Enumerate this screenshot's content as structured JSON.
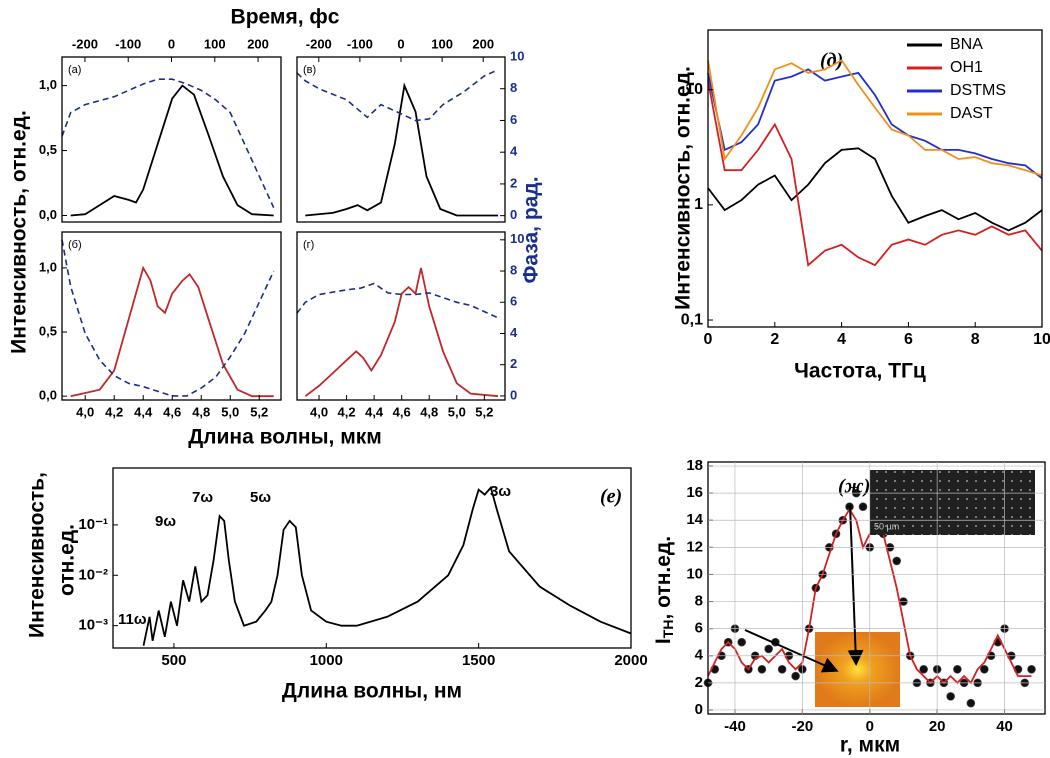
{
  "chart_data": [
    {
      "type": "line",
      "panel_label": "(а)",
      "x2label": "Время, фс",
      "ylabel": "Интенсивность, отн.ед.",
      "xlim": [
        3.84,
        5.35
      ],
      "x2lim": [
        -253,
        253
      ],
      "ylim": [
        -0.05,
        1.22
      ],
      "y2lim": [
        -0.4,
        10
      ],
      "x2ticks": [
        -200,
        -100,
        0,
        100,
        200
      ],
      "yticks": [
        {
          "value": 0,
          "label": "0,0"
        },
        {
          "value": 0.5,
          "label": "0,5"
        },
        {
          "value": 1,
          "label": "1,0"
        }
      ],
      "series": [
        {
          "color": "#000000",
          "style": "solid",
          "x": [
            3.9,
            4.0,
            4.1,
            4.2,
            4.3,
            4.35,
            4.4,
            4.5,
            4.6,
            4.67,
            4.75,
            4.85,
            4.95,
            5.05,
            5.15,
            5.3
          ],
          "values": [
            0,
            0.01,
            0.08,
            0.15,
            0.12,
            0.1,
            0.2,
            0.55,
            0.9,
            1.0,
            0.93,
            0.62,
            0.3,
            0.08,
            0.01,
            0
          ]
        },
        {
          "color": "#1a2f8a",
          "style": "dashed",
          "axis": "y2",
          "x": [
            3.84,
            3.9,
            4.0,
            4.2,
            4.4,
            4.5,
            4.6,
            4.7,
            4.8,
            4.9,
            5.0,
            5.1,
            5.2,
            5.3
          ],
          "values": [
            5,
            6.5,
            7,
            7.5,
            8.3,
            8.6,
            8.6,
            8.3,
            7.9,
            7.3,
            6.5,
            4.5,
            2.5,
            0.5
          ]
        }
      ]
    },
    {
      "type": "line",
      "panel_label": "(в)",
      "y2label": "Фаза, рад.",
      "xlim": [
        3.84,
        5.35
      ],
      "x2lim": [
        -253,
        253
      ],
      "ylim": [
        -0.05,
        1.22
      ],
      "y2lim": [
        -0.4,
        10
      ],
      "x2ticks": [
        -200,
        -100,
        0,
        100,
        200
      ],
      "y2ticks": [
        0,
        2,
        4,
        6,
        8,
        10
      ],
      "series": [
        {
          "color": "#000000",
          "style": "solid",
          "x": [
            3.9,
            4.1,
            4.2,
            4.28,
            4.35,
            4.45,
            4.55,
            4.62,
            4.7,
            4.78,
            4.88,
            5.0,
            5.3
          ],
          "values": [
            0,
            0.02,
            0.05,
            0.08,
            0.04,
            0.1,
            0.55,
            1.0,
            0.8,
            0.3,
            0.05,
            0,
            0
          ]
        },
        {
          "color": "#1a2f8a",
          "style": "dashed",
          "axis": "y2",
          "x": [
            3.84,
            3.9,
            4.0,
            4.2,
            4.35,
            4.45,
            4.55,
            4.7,
            4.8,
            4.9,
            5.05,
            5.2,
            5.3
          ],
          "values": [
            9,
            8.5,
            8,
            7.3,
            6.2,
            7,
            6.6,
            6,
            6.1,
            7,
            7.8,
            8.8,
            9.2
          ]
        }
      ]
    },
    {
      "type": "line",
      "panel_label": "(б)",
      "xlabel": "Длина волны, мкм",
      "xlim": [
        3.84,
        5.35
      ],
      "ylim": [
        -0.03,
        1.28
      ],
      "y2lim": [
        -0.26,
        10.5
      ],
      "xticks": [
        {
          "value": 4.0,
          "label": "4,0"
        },
        {
          "value": 4.2,
          "label": "4,2"
        },
        {
          "value": 4.4,
          "label": "4,4"
        },
        {
          "value": 4.6,
          "label": "4,6"
        },
        {
          "value": 4.8,
          "label": "4,8"
        },
        {
          "value": 5.0,
          "label": "5,0"
        },
        {
          "value": 5.2,
          "label": "5,2"
        }
      ],
      "yticks": [
        {
          "value": 0,
          "label": "0,0"
        },
        {
          "value": 0.5,
          "label": "0,5"
        },
        {
          "value": 1,
          "label": "1,0"
        }
      ],
      "series": [
        {
          "color": "#c0282a",
          "style": "solid",
          "x": [
            3.9,
            4.1,
            4.2,
            4.3,
            4.4,
            4.45,
            4.5,
            4.55,
            4.6,
            4.67,
            4.72,
            4.78,
            4.85,
            4.95,
            5.05,
            5.15,
            5.3
          ],
          "values": [
            0,
            0.05,
            0.2,
            0.6,
            1.0,
            0.9,
            0.7,
            0.65,
            0.8,
            0.9,
            0.95,
            0.85,
            0.6,
            0.25,
            0.05,
            0,
            0
          ]
        },
        {
          "color": "#1a2f8a",
          "style": "dashed",
          "axis": "y2",
          "x": [
            3.84,
            3.9,
            4.0,
            4.1,
            4.2,
            4.3,
            4.4,
            4.5,
            4.6,
            4.7,
            4.8,
            4.9,
            5.0,
            5.1,
            5.2,
            5.3
          ],
          "values": [
            10,
            7,
            4,
            2.3,
            1.3,
            0.8,
            0.6,
            0.3,
            0,
            0,
            0.5,
            1.2,
            2.5,
            4,
            6,
            8
          ]
        }
      ]
    },
    {
      "type": "line",
      "panel_label": "(г)",
      "xlim": [
        3.84,
        5.35
      ],
      "ylim": [
        -0.03,
        1.28
      ],
      "y2lim": [
        -0.26,
        10.5
      ],
      "xticks": [
        {
          "value": 4.0,
          "label": "4,0"
        },
        {
          "value": 4.2,
          "label": "4,2"
        },
        {
          "value": 4.4,
          "label": "4,4"
        },
        {
          "value": 4.6,
          "label": "4,6"
        },
        {
          "value": 4.8,
          "label": "4,8"
        },
        {
          "value": 5.0,
          "label": "5,0"
        },
        {
          "value": 5.2,
          "label": "5,2"
        }
      ],
      "y2ticks": [
        0,
        2,
        4,
        6,
        8,
        10
      ],
      "series": [
        {
          "color": "#c0282a",
          "style": "solid",
          "x": [
            3.9,
            4.0,
            4.1,
            4.2,
            4.27,
            4.32,
            4.38,
            4.45,
            4.55,
            4.6,
            4.65,
            4.7,
            4.74,
            4.8,
            4.9,
            5.0,
            5.1,
            5.3
          ],
          "values": [
            0,
            0.08,
            0.18,
            0.28,
            0.35,
            0.3,
            0.2,
            0.32,
            0.58,
            0.8,
            0.85,
            0.8,
            1.0,
            0.7,
            0.35,
            0.1,
            0.02,
            0
          ]
        },
        {
          "color": "#1a2f8a",
          "style": "dashed",
          "axis": "y2",
          "x": [
            3.84,
            3.9,
            4.0,
            4.2,
            4.3,
            4.4,
            4.5,
            4.6,
            4.7,
            4.8,
            4.9,
            5.0,
            5.1,
            5.2,
            5.3
          ],
          "values": [
            5.3,
            6,
            6.5,
            6.8,
            6.9,
            7.2,
            6.6,
            6.5,
            6.5,
            6.6,
            6.3,
            6,
            5.8,
            5.4,
            5
          ]
        }
      ]
    },
    {
      "type": "line",
      "panel_label": "(д)",
      "xlabel": "Частота, ТГц",
      "ylabel": "Интенсивность, отн.ед.",
      "ylog": true,
      "xlim": [
        0,
        10
      ],
      "ylim": [
        0.087,
        33
      ],
      "xticks": [
        0,
        2,
        4,
        6,
        8,
        10
      ],
      "yticks": [
        {
          "value": 0.1,
          "label": "0,1"
        },
        1,
        10
      ],
      "legend": "top-right",
      "x": [
        0,
        0.5,
        1,
        1.5,
        2,
        2.5,
        3,
        3.5,
        4,
        4.5,
        5,
        5.5,
        6,
        6.5,
        7,
        7.5,
        8,
        8.5,
        9,
        9.5,
        10
      ],
      "series": [
        {
          "name": "BNA",
          "color": "#000000",
          "values": [
            1.4,
            0.9,
            1.1,
            1.5,
            1.8,
            1.1,
            1.5,
            2.3,
            3,
            3.1,
            2.5,
            1.2,
            0.7,
            0.8,
            0.9,
            0.75,
            0.85,
            0.7,
            0.6,
            0.7,
            0.9
          ]
        },
        {
          "name": "OH1",
          "color": "#d42020",
          "values": [
            12,
            2,
            2,
            3,
            5,
            2.5,
            0.3,
            0.4,
            0.45,
            0.35,
            0.3,
            0.45,
            0.5,
            0.45,
            0.55,
            0.6,
            0.55,
            0.65,
            0.55,
            0.6,
            0.4
          ]
        },
        {
          "name": "DSTMS",
          "color": "#1f2fd0",
          "values": [
            14,
            3,
            3.5,
            5,
            12,
            13,
            15,
            12,
            13,
            14,
            9,
            5,
            4,
            3.6,
            3,
            3,
            2.8,
            2.5,
            2.3,
            2.2,
            1.7
          ]
        },
        {
          "name": "DAST",
          "color": "#f0901a",
          "values": [
            18,
            2.5,
            4,
            7,
            15,
            17,
            14,
            15,
            18,
            11,
            7,
            4.5,
            4,
            3,
            3,
            2.5,
            2.6,
            2.3,
            2.2,
            2.0,
            1.8
          ]
        }
      ]
    },
    {
      "type": "line",
      "panel_label": "(е)",
      "xlabel": "Длина волны, нм",
      "ylabel": [
        "Интенсивность,",
        "отн.ед."
      ],
      "ylog": true,
      "annotations": [
        "3ω",
        "5ω",
        "7ω",
        "9ω",
        "11ω"
      ],
      "xlim": [
        300,
        2000
      ],
      "ylim": [
        0.00036,
        1.35
      ],
      "xticks": [
        500,
        1000,
        1500,
        2000
      ],
      "yticks": [
        {
          "value": 0.001,
          "label": "10⁻³"
        },
        {
          "value": 0.01,
          "label": "10⁻²"
        },
        {
          "value": 0.1,
          "label": "10⁻¹"
        }
      ],
      "series": [
        {
          "color": "#000000",
          "x": [
            400,
            420,
            430,
            450,
            470,
            490,
            510,
            530,
            550,
            570,
            590,
            610,
            630,
            650,
            665,
            680,
            700,
            730,
            770,
            800,
            820,
            840,
            860,
            880,
            900,
            920,
            950,
            1000,
            1050,
            1100,
            1200,
            1300,
            1400,
            1450,
            1480,
            1500,
            1520,
            1540,
            1560,
            1600,
            1700,
            1800,
            1900,
            2000
          ],
          "values": [
            0.0004,
            0.0015,
            0.0005,
            0.002,
            0.0006,
            0.003,
            0.001,
            0.008,
            0.003,
            0.015,
            0.003,
            0.004,
            0.02,
            0.15,
            0.12,
            0.02,
            0.003,
            0.001,
            0.0012,
            0.002,
            0.003,
            0.01,
            0.08,
            0.12,
            0.09,
            0.01,
            0.002,
            0.0012,
            0.001,
            0.001,
            0.0015,
            0.003,
            0.01,
            0.04,
            0.2,
            0.5,
            0.4,
            0.55,
            0.2,
            0.03,
            0.006,
            0.0025,
            0.0012,
            0.0007
          ]
        }
      ]
    },
    {
      "type": "scatter",
      "panel_label": "(ж)",
      "xlabel": "r, мкм",
      "ylabel": [
        "I",
        "TH",
        ", отн.ед."
      ],
      "inset_label": "50 µm",
      "grid": true,
      "xlim": [
        -48,
        52
      ],
      "ylim": [
        -0.3,
        18.3
      ],
      "xticks": [
        -40,
        -20,
        0,
        20,
        40
      ],
      "yticks": [
        0,
        2,
        4,
        6,
        8,
        10,
        12,
        14,
        16,
        18
      ],
      "x": [
        -48,
        -46,
        -44,
        -42,
        -40,
        -38,
        -36,
        -34,
        -32,
        -30,
        -28,
        -26,
        -24,
        -22,
        -20,
        -18,
        -16,
        -14,
        -12,
        -10,
        -8,
        -6,
        -4,
        -2,
        0,
        2,
        4,
        6,
        8,
        10,
        12,
        14,
        16,
        18,
        20,
        22,
        24,
        26,
        28,
        30,
        32,
        34,
        36,
        38,
        40,
        42,
        44,
        46,
        48
      ],
      "series": [
        {
          "kind": "scatter",
          "color": "#111111",
          "values": [
            2,
            3,
            4,
            5,
            6,
            5,
            3,
            4,
            3,
            4.5,
            5,
            3,
            4,
            2.5,
            3,
            6,
            9,
            10,
            12,
            13,
            14,
            15,
            16,
            15,
            12,
            14,
            13,
            12,
            11,
            8,
            4,
            2,
            3,
            2,
            3,
            2,
            1,
            3,
            2,
            0.5,
            2,
            3,
            4,
            5,
            6,
            4,
            3,
            2,
            3
          ]
        },
        {
          "kind": "line",
          "color": "#d42020",
          "values": [
            2.5,
            3.5,
            4.5,
            5,
            4.5,
            3.5,
            3,
            3.8,
            4,
            3.5,
            4,
            4.5,
            3.5,
            3,
            3.5,
            6,
            9,
            10,
            11.5,
            13,
            14,
            14.8,
            14,
            12,
            13,
            13.5,
            13,
            11,
            9,
            6.5,
            4,
            3,
            2.5,
            2,
            2.5,
            2,
            2.5,
            2,
            2.5,
            2,
            3,
            3.5,
            4.5,
            5.5,
            4.5,
            3.5,
            2.5,
            2.5,
            2.5
          ]
        }
      ]
    }
  ]
}
